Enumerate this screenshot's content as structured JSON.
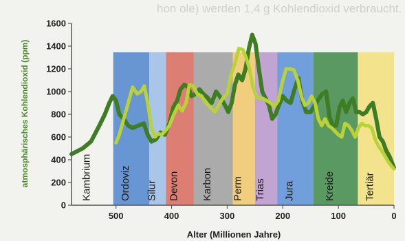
{
  "chart_data": {
    "type": "line",
    "title": "",
    "xlabel": "Alter (Millionen Jahre)",
    "ylabel": "atmosphärisches Kohlendioxid (ppm)",
    "xlim": [
      580,
      0
    ],
    "ylim": [
      0,
      1600
    ],
    "x_ticks": [
      500,
      400,
      300,
      200,
      100,
      0
    ],
    "y_ticks": [
      0,
      200,
      400,
      600,
      800,
      1000,
      1200,
      1400,
      1600
    ],
    "grid": false,
    "background_text": "hon ole) werden 1,4 g Kohlendioxid verbraucht.",
    "periods": [
      {
        "name": "Kambrium",
        "start": 580,
        "end": 505,
        "color": "#f2f2ee"
      },
      {
        "name": "Ordoviz",
        "start": 505,
        "end": 440,
        "color": "#4f86cc"
      },
      {
        "name": "Silur",
        "start": 440,
        "end": 410,
        "color": "#9cbde6"
      },
      {
        "name": "Devon",
        "start": 410,
        "end": 360,
        "color": "#d86a5a"
      },
      {
        "name": "Karbon",
        "start": 360,
        "end": 290,
        "color": "#9f9f9f"
      },
      {
        "name": "Perm",
        "start": 290,
        "end": 250,
        "color": "#f0c86a"
      },
      {
        "name": "Trias",
        "start": 250,
        "end": 210,
        "color": "#b896cc"
      },
      {
        "name": "Jura",
        "start": 210,
        "end": 145,
        "color": "#5a90d8"
      },
      {
        "name": "Kreide",
        "start": 145,
        "end": 65,
        "color": "#3f8a48"
      },
      {
        "name": "Tertiär",
        "start": 65,
        "end": 0,
        "color": "#f2e07a"
      }
    ],
    "series": [
      {
        "color": "#3e7d23",
        "x": [
          580,
          560,
          545,
          530,
          520,
          512,
          506,
          500,
          494,
          486,
          478,
          470,
          460,
          450,
          443,
          436,
          428,
          420,
          412,
          404,
          397,
          390,
          384,
          377,
          370,
          364,
          357,
          350,
          343,
          336,
          328,
          320,
          312,
          304,
          298,
          292,
          286,
          280,
          273,
          267,
          261,
          255,
          249,
          243,
          237,
          231,
          225,
          219,
          213,
          207,
          200,
          193,
          186,
          179,
          172,
          165,
          158,
          150,
          143,
          136,
          129,
          122,
          116,
          110,
          104,
          98,
          92,
          86,
          80,
          74,
          68,
          62,
          56,
          50,
          44,
          38,
          32,
          26,
          20,
          14,
          8,
          0
        ],
        "y": [
          450,
          500,
          560,
          700,
          800,
          900,
          960,
          920,
          800,
          760,
          700,
          680,
          700,
          720,
          620,
          560,
          580,
          640,
          620,
          720,
          860,
          920,
          1020,
          1060,
          1040,
          960,
          980,
          1020,
          980,
          950,
          900,
          1000,
          950,
          880,
          820,
          900,
          1060,
          1150,
          1100,
          1200,
          1380,
          1500,
          1420,
          1200,
          1000,
          940,
          880,
          760,
          800,
          880,
          960,
          920,
          900,
          1020,
          1120,
          920,
          820,
          820,
          880,
          930,
          980,
          1000,
          780,
          700,
          700,
          860,
          920,
          820,
          900,
          940,
          820,
          820,
          800,
          820,
          870,
          900,
          760,
          600,
          560,
          480,
          430,
          330
        ]
      },
      {
        "color": "#b9d239",
        "x": [
          500,
          494,
          486,
          478,
          470,
          462,
          455,
          449,
          443,
          436,
          430,
          424,
          418,
          412,
          404,
          396,
          388,
          381,
          374,
          368,
          361,
          354,
          346,
          338,
          330,
          322,
          315,
          308,
          300,
          293,
          286,
          279,
          272,
          266,
          260,
          254,
          248,
          242,
          236,
          229,
          222,
          215,
          208,
          201,
          194,
          187,
          180,
          173,
          166,
          160,
          154,
          148,
          142,
          136,
          130,
          124,
          118,
          112,
          106,
          100,
          94,
          88,
          82,
          76,
          70,
          64,
          58,
          52,
          46,
          40,
          34,
          28,
          22,
          16,
          10,
          4,
          0
        ],
        "y": [
          550,
          620,
          760,
          900,
          1040,
          980,
          1000,
          1050,
          900,
          680,
          600,
          630,
          620,
          650,
          700,
          800,
          880,
          830,
          900,
          1060,
          1050,
          980,
          960,
          900,
          860,
          820,
          880,
          940,
          980,
          1150,
          1250,
          1380,
          1370,
          1300,
          1200,
          1050,
          960,
          940,
          940,
          920,
          900,
          870,
          920,
          1080,
          1200,
          1200,
          1190,
          1100,
          950,
          880,
          900,
          960,
          900,
          760,
          700,
          760,
          700,
          680,
          650,
          620,
          600,
          720,
          700,
          660,
          600,
          680,
          720,
          700,
          700,
          680,
          580,
          520,
          480,
          430,
          380,
          340,
          320
        ]
      }
    ]
  }
}
